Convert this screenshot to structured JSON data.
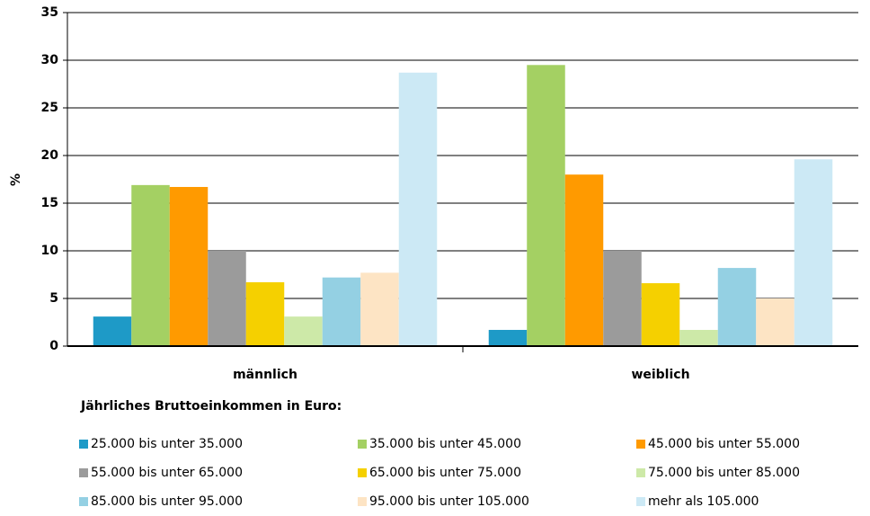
{
  "chart_data": {
    "type": "bar",
    "y_label": "%",
    "legend_title": "Jährliches Bruttoeinkommen in Euro:",
    "categories": [
      "männlich",
      "weiblich"
    ],
    "series": [
      {
        "name": "25.000 bis unter 35.000",
        "color": "#1e9ac7",
        "values": [
          3.1,
          1.7
        ]
      },
      {
        "name": "35.000 bis unter 45.000",
        "color": "#a4d063",
        "values": [
          16.9,
          29.5
        ]
      },
      {
        "name": "45.000 bis unter 55.000",
        "color": "#ff9a00",
        "values": [
          16.7,
          18.0
        ]
      },
      {
        "name": "55.000 bis unter 65.000",
        "color": "#9b9b9b",
        "values": [
          10.0,
          10.0
        ]
      },
      {
        "name": "65.000 bis unter 75.000",
        "color": "#f5d000",
        "values": [
          6.7,
          6.6
        ]
      },
      {
        "name": "75.000 bis unter 85.000",
        "color": "#cde9a8",
        "values": [
          3.1,
          1.7
        ]
      },
      {
        "name": "85.000 bis unter 95.000",
        "color": "#94d0e3",
        "values": [
          7.2,
          8.2
        ]
      },
      {
        "name": "95.000 bis unter 105.000",
        "color": "#fde4c4",
        "values": [
          7.7,
          5.0
        ]
      },
      {
        "name": "mehr als 105.000",
        "color": "#cce9f5",
        "values": [
          28.7,
          19.6
        ]
      }
    ],
    "ylim": [
      0,
      35
    ],
    "yticks": [
      0,
      5,
      10,
      15,
      20,
      25,
      30,
      35
    ],
    "grid": true
  }
}
